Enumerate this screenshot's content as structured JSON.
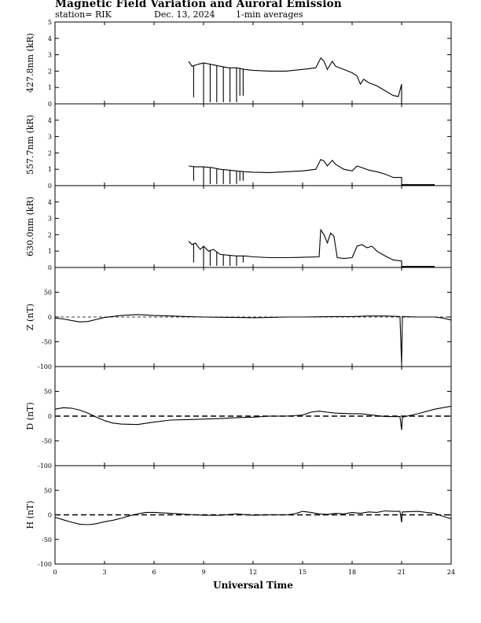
{
  "header": {
    "title": "Magnetic Field Variation and Auroral Emission",
    "station": "station= RIK",
    "date": "Dec. 13, 2024",
    "averaging": "1-min averages"
  },
  "chart_data": [
    {
      "type": "line",
      "ylabel": "427.8nm (kR)",
      "ylim": [
        0,
        5
      ],
      "yticks": [
        0,
        1,
        2,
        3,
        4,
        5
      ],
      "xlim": [
        0,
        24
      ],
      "baseline": null,
      "series": [
        {
          "points": [
            [
              8.1,
              2.6
            ],
            [
              8.3,
              2.3
            ],
            [
              8.6,
              2.4
            ],
            [
              9.0,
              2.5
            ],
            [
              9.5,
              2.4
            ],
            [
              10.0,
              2.3
            ],
            [
              10.5,
              2.2
            ],
            [
              11.0,
              2.2
            ],
            [
              11.5,
              2.1
            ],
            [
              12.0,
              2.05
            ],
            [
              13.0,
              2.0
            ],
            [
              14.0,
              2.0
            ],
            [
              15.0,
              2.1
            ],
            [
              15.8,
              2.2
            ],
            [
              16.1,
              2.8
            ],
            [
              16.3,
              2.6
            ],
            [
              16.5,
              2.1
            ],
            [
              16.8,
              2.6
            ],
            [
              17.0,
              2.3
            ],
            [
              17.5,
              2.1
            ],
            [
              18.0,
              1.9
            ],
            [
              18.3,
              1.7
            ],
            [
              18.5,
              1.2
            ],
            [
              18.7,
              1.5
            ],
            [
              19.0,
              1.3
            ],
            [
              19.5,
              1.1
            ],
            [
              20.0,
              0.8
            ],
            [
              20.5,
              0.5
            ],
            [
              20.8,
              0.45
            ],
            [
              21.0,
              1.2
            ],
            [
              21.0,
              0.0
            ]
          ]
        }
      ],
      "spikes": [
        [
          8.4,
          0.4
        ],
        [
          9.0,
          0.1
        ],
        [
          9.4,
          0.1
        ],
        [
          9.8,
          0.1
        ],
        [
          10.2,
          0.1
        ],
        [
          10.6,
          0.1
        ],
        [
          11.0,
          0.1
        ],
        [
          11.2,
          0.5
        ],
        [
          11.4,
          0.5
        ]
      ]
    },
    {
      "type": "line",
      "ylabel": "557.7nm (kR)",
      "ylim": [
        0,
        5
      ],
      "yticks": [
        0,
        1,
        2,
        3,
        4
      ],
      "xlim": [
        0,
        24
      ],
      "baseline": null,
      "series": [
        {
          "points": [
            [
              8.1,
              1.2
            ],
            [
              8.5,
              1.15
            ],
            [
              9.0,
              1.15
            ],
            [
              9.5,
              1.1
            ],
            [
              10.0,
              1.0
            ],
            [
              10.5,
              0.95
            ],
            [
              11.0,
              0.9
            ],
            [
              11.5,
              0.85
            ],
            [
              12.0,
              0.82
            ],
            [
              13.0,
              0.8
            ],
            [
              14.0,
              0.85
            ],
            [
              15.0,
              0.9
            ],
            [
              15.8,
              1.0
            ],
            [
              16.1,
              1.6
            ],
            [
              16.3,
              1.5
            ],
            [
              16.5,
              1.2
            ],
            [
              16.8,
              1.55
            ],
            [
              17.0,
              1.3
            ],
            [
              17.5,
              1.0
            ],
            [
              18.0,
              0.9
            ],
            [
              18.3,
              1.2
            ],
            [
              18.6,
              1.1
            ],
            [
              19.0,
              0.95
            ],
            [
              19.5,
              0.85
            ],
            [
              20.0,
              0.7
            ],
            [
              20.5,
              0.5
            ],
            [
              21.0,
              0.5
            ],
            [
              21.0,
              0.0
            ],
            [
              23.0,
              0.05
            ]
          ]
        }
      ],
      "spikes": [
        [
          8.4,
          0.3
        ],
        [
          9.0,
          0.1
        ],
        [
          9.4,
          0.1
        ],
        [
          9.8,
          0.1
        ],
        [
          10.2,
          0.1
        ],
        [
          10.6,
          0.1
        ],
        [
          11.0,
          0.1
        ],
        [
          11.2,
          0.3
        ],
        [
          11.4,
          0.3
        ]
      ]
    },
    {
      "type": "line",
      "ylabel": "630.0nm (kR)",
      "ylim": [
        0,
        5
      ],
      "yticks": [
        0,
        1,
        2,
        3,
        4
      ],
      "xlim": [
        0,
        24
      ],
      "baseline": null,
      "series": [
        {
          "points": [
            [
              8.1,
              1.6
            ],
            [
              8.3,
              1.4
            ],
            [
              8.5,
              1.5
            ],
            [
              8.8,
              1.1
            ],
            [
              9.0,
              1.3
            ],
            [
              9.3,
              1.0
            ],
            [
              9.6,
              1.1
            ],
            [
              10.0,
              0.8
            ],
            [
              10.5,
              0.75
            ],
            [
              11.0,
              0.7
            ],
            [
              11.5,
              0.7
            ],
            [
              12.0,
              0.65
            ],
            [
              13.0,
              0.6
            ],
            [
              14.0,
              0.6
            ],
            [
              15.0,
              0.62
            ],
            [
              16.0,
              0.65
            ],
            [
              16.1,
              2.3
            ],
            [
              16.3,
              2.0
            ],
            [
              16.5,
              1.5
            ],
            [
              16.7,
              2.1
            ],
            [
              16.9,
              1.9
            ],
            [
              17.1,
              0.6
            ],
            [
              17.5,
              0.55
            ],
            [
              18.0,
              0.6
            ],
            [
              18.3,
              1.3
            ],
            [
              18.6,
              1.4
            ],
            [
              18.9,
              1.2
            ],
            [
              19.2,
              1.3
            ],
            [
              19.5,
              1.0
            ],
            [
              20.0,
              0.7
            ],
            [
              20.5,
              0.45
            ],
            [
              21.0,
              0.4
            ],
            [
              21.0,
              0.0
            ],
            [
              23.0,
              0.05
            ]
          ]
        }
      ],
      "spikes": [
        [
          8.4,
          0.3
        ],
        [
          9.0,
          0.1
        ],
        [
          9.4,
          0.1
        ],
        [
          9.8,
          0.1
        ],
        [
          10.2,
          0.1
        ],
        [
          10.6,
          0.1
        ],
        [
          11.0,
          0.1
        ],
        [
          11.4,
          0.3
        ]
      ]
    },
    {
      "type": "line",
      "ylabel": "Z (nT)",
      "ylim": [
        -100,
        100
      ],
      "yticks": [
        -100,
        -50,
        0,
        50
      ],
      "xlim": [
        0,
        24
      ],
      "baseline": 0,
      "series": [
        {
          "points": [
            [
              0,
              -2
            ],
            [
              0.5,
              -4
            ],
            [
              1.0,
              -7
            ],
            [
              1.5,
              -10
            ],
            [
              2.0,
              -9
            ],
            [
              2.5,
              -5
            ],
            [
              3.0,
              -1
            ],
            [
              4.0,
              3
            ],
            [
              5.0,
              5
            ],
            [
              6.0,
              3
            ],
            [
              7.0,
              2
            ],
            [
              8.0,
              1
            ],
            [
              9.0,
              0
            ],
            [
              10.0,
              -0.5
            ],
            [
              11.0,
              -1
            ],
            [
              12.0,
              -1.5
            ],
            [
              13.0,
              -1
            ],
            [
              14.0,
              0
            ],
            [
              15.0,
              0
            ],
            [
              16.0,
              0.5
            ],
            [
              17.0,
              1
            ],
            [
              18.0,
              1
            ],
            [
              19.0,
              2
            ],
            [
              20.0,
              2
            ],
            [
              20.9,
              1
            ],
            [
              21.0,
              -95
            ],
            [
              21.05,
              1
            ],
            [
              22.0,
              0
            ],
            [
              23.0,
              0
            ],
            [
              23.5,
              -2
            ],
            [
              24.0,
              -6
            ]
          ]
        }
      ],
      "spikes": []
    },
    {
      "type": "line",
      "ylabel": "D (nT)",
      "ylim": [
        -100,
        100
      ],
      "yticks": [
        -100,
        -50,
        0,
        50
      ],
      "xlim": [
        0,
        24
      ],
      "baseline": 0,
      "series": [
        {
          "points": [
            [
              0,
              14
            ],
            [
              0.5,
              17
            ],
            [
              1.0,
              16
            ],
            [
              1.5,
              12
            ],
            [
              2.0,
              6
            ],
            [
              2.5,
              -2
            ],
            [
              3.0,
              -9
            ],
            [
              3.5,
              -14
            ],
            [
              4.0,
              -16
            ],
            [
              5.0,
              -17
            ],
            [
              6.0,
              -12
            ],
            [
              7.0,
              -8
            ],
            [
              8.0,
              -7
            ],
            [
              9.0,
              -6
            ],
            [
              10.0,
              -5
            ],
            [
              11.0,
              -3
            ],
            [
              12.0,
              -2
            ],
            [
              13.0,
              0
            ],
            [
              14.0,
              0
            ],
            [
              15.0,
              2
            ],
            [
              15.5,
              8
            ],
            [
              16.0,
              10
            ],
            [
              16.5,
              8
            ],
            [
              17.0,
              6
            ],
            [
              18.0,
              5
            ],
            [
              18.5,
              5
            ],
            [
              19.0,
              3
            ],
            [
              20.0,
              -1
            ],
            [
              20.9,
              -1
            ],
            [
              21.0,
              -28
            ],
            [
              21.05,
              -2
            ],
            [
              22.0,
              5
            ],
            [
              23.0,
              14
            ],
            [
              24.0,
              20
            ]
          ]
        }
      ],
      "spikes": []
    },
    {
      "type": "line",
      "ylabel": "H (nT)",
      "ylim": [
        -100,
        100
      ],
      "yticks": [
        -100,
        -50,
        0,
        50
      ],
      "xlim": [
        0,
        24
      ],
      "baseline": 0,
      "series": [
        {
          "points": [
            [
              0,
              -5
            ],
            [
              0.5,
              -10
            ],
            [
              1.0,
              -15
            ],
            [
              1.5,
              -19
            ],
            [
              2.0,
              -20
            ],
            [
              2.5,
              -18
            ],
            [
              3.0,
              -14
            ],
            [
              3.5,
              -11
            ],
            [
              4.0,
              -7
            ],
            [
              4.5,
              -2
            ],
            [
              5.0,
              2
            ],
            [
              5.5,
              5
            ],
            [
              6.0,
              5
            ],
            [
              7.0,
              3
            ],
            [
              8.0,
              1
            ],
            [
              9.0,
              -1
            ],
            [
              10.0,
              -1
            ],
            [
              11.0,
              2
            ],
            [
              12.0,
              -1
            ],
            [
              13.0,
              0
            ],
            [
              14.0,
              0
            ],
            [
              14.5,
              2
            ],
            [
              15.0,
              7
            ],
            [
              15.5,
              5
            ],
            [
              16.0,
              2
            ],
            [
              16.5,
              1
            ],
            [
              17.0,
              3
            ],
            [
              17.5,
              2
            ],
            [
              18.0,
              5
            ],
            [
              18.5,
              3
            ],
            [
              19.0,
              6
            ],
            [
              19.5,
              5
            ],
            [
              20.0,
              8
            ],
            [
              20.5,
              7
            ],
            [
              20.9,
              7
            ],
            [
              21.0,
              -15
            ],
            [
              21.05,
              6
            ],
            [
              22.0,
              7
            ],
            [
              22.5,
              5
            ],
            [
              23.0,
              3
            ],
            [
              23.5,
              -3
            ],
            [
              24.0,
              -8
            ]
          ]
        }
      ],
      "spikes": []
    }
  ],
  "xaxis": {
    "label": "Universal Time",
    "ticks": [
      0,
      3,
      6,
      9,
      12,
      15,
      18,
      21,
      24
    ]
  }
}
